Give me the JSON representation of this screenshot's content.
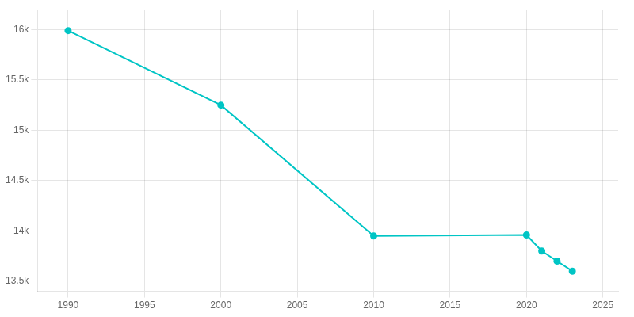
{
  "chart_data": {
    "type": "line",
    "x": [
      1990,
      2000,
      2010,
      2020,
      2021,
      2022,
      2023
    ],
    "values": [
      15990,
      15250,
      13950,
      13960,
      13800,
      13700,
      13600
    ],
    "color": "#00c5c5",
    "marker": "circle",
    "xlim": [
      1988,
      2026
    ],
    "ylim": [
      13400,
      16200
    ],
    "xticks": [
      1990,
      1995,
      2000,
      2005,
      2010,
      2015,
      2020,
      2025
    ],
    "yticks": [
      {
        "value": 13500,
        "label": "13.5k"
      },
      {
        "value": 14000,
        "label": "14k"
      },
      {
        "value": 14500,
        "label": "14.5k"
      },
      {
        "value": 15000,
        "label": "15k"
      },
      {
        "value": 15500,
        "label": "15.5k"
      },
      {
        "value": 16000,
        "label": "16k"
      }
    ],
    "grid": true
  }
}
